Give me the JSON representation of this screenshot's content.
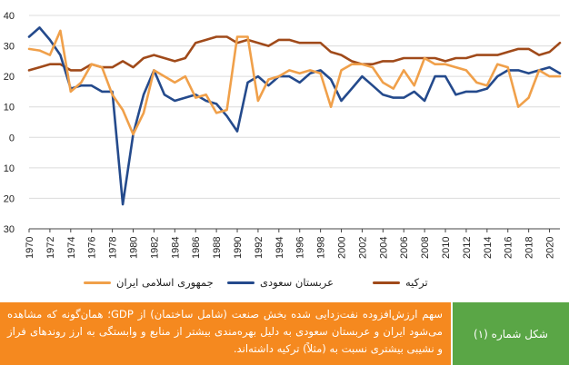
{
  "chart_data": {
    "type": "line",
    "title": "",
    "xlabel": "",
    "ylabel": "",
    "ylim": [
      -30,
      40
    ],
    "yticks": [
      -30,
      -20,
      -10,
      0,
      10,
      20,
      30,
      40
    ],
    "ytick_labels": [
      "30",
      "20",
      "10",
      "0",
      "10",
      "20",
      "30",
      "40"
    ],
    "xlim": [
      1970,
      2021
    ],
    "xticks": [
      1970,
      1972,
      1974,
      1976,
      1978,
      1980,
      1982,
      1984,
      1986,
      1988,
      1990,
      1992,
      1994,
      1996,
      1998,
      2000,
      2002,
      2004,
      2006,
      2008,
      2010,
      2012,
      2014,
      2016,
      2018,
      2020
    ],
    "grid": "horizontal",
    "legend_position": "bottom",
    "x": [
      1970,
      1971,
      1972,
      1973,
      1974,
      1975,
      1976,
      1977,
      1978,
      1979,
      1980,
      1981,
      1982,
      1983,
      1984,
      1985,
      1986,
      1987,
      1988,
      1989,
      1990,
      1991,
      1992,
      1993,
      1994,
      1995,
      1996,
      1997,
      1998,
      1999,
      2000,
      2001,
      2002,
      2003,
      2004,
      2005,
      2006,
      2007,
      2008,
      2009,
      2010,
      2011,
      2012,
      2013,
      2014,
      2015,
      2016,
      2017,
      2018,
      2019,
      2020,
      2021
    ],
    "series": [
      {
        "name": "جمهوری اسلامی ایران",
        "color": "#f0a04a",
        "values": [
          29,
          28.5,
          27,
          35,
          15,
          18,
          24,
          23,
          14,
          9,
          1,
          8,
          22,
          20,
          18,
          20,
          13,
          14,
          8,
          9,
          33,
          33,
          12,
          19,
          20,
          22,
          21,
          22,
          21,
          10,
          22,
          24,
          24,
          23,
          18,
          16,
          22,
          17,
          26,
          24,
          24,
          23,
          22,
          18,
          17,
          24,
          23,
          10,
          13,
          22,
          20,
          20
        ]
      },
      {
        "name": "عربستان سعودی",
        "color": "#244a8c",
        "values": [
          33,
          36,
          32,
          27,
          16,
          17,
          17,
          15,
          15,
          -22,
          1,
          14,
          22,
          14,
          12,
          13,
          14,
          12,
          11,
          7,
          2,
          18,
          20,
          17,
          20,
          20,
          18,
          21,
          22,
          19,
          12,
          16,
          20,
          17,
          14,
          13,
          13,
          15,
          12,
          20,
          20,
          14,
          15,
          15,
          16,
          20,
          22,
          22,
          21,
          22,
          23,
          21
        ]
      },
      {
        "name": "ترکیه",
        "color": "#a04a1a",
        "values": [
          22,
          23,
          24,
          24,
          22,
          22,
          24,
          23,
          23,
          25,
          23,
          26,
          27,
          26,
          25,
          26,
          31,
          32,
          33,
          33,
          31,
          32,
          31,
          30,
          32,
          32,
          31,
          31,
          31,
          28,
          27,
          25,
          24,
          24,
          25,
          25,
          26,
          26,
          26,
          26,
          25,
          26,
          26,
          27,
          27,
          27,
          28,
          29,
          29,
          27,
          28,
          31
        ]
      }
    ]
  },
  "legend": {
    "items": [
      {
        "label": "ترکیه",
        "color": "#a04a1a"
      },
      {
        "label": "عربستان سعودی",
        "color": "#244a8c"
      },
      {
        "label": "جمهوری اسلامی ایران",
        "color": "#f0a04a"
      }
    ]
  },
  "caption": {
    "label": "شکل شماره (۱)",
    "text": "سهم ارزش‌افزوده نفت‌زدایی شده بخش صنعت (شامل ساختمان) از GDP؛ همان‌گونه که مشاهده می‌شود ایران و عربستان سعودی به دلیل بهره‌مندی بیشتر از منابع و وابستگی به ارز روندهای فراز و نشیبی بیشتری نسبت به (مثلاً) ترکیه داشته‌اند.",
    "label_bg": "#5aa646",
    "text_bg": "#f5891f"
  }
}
